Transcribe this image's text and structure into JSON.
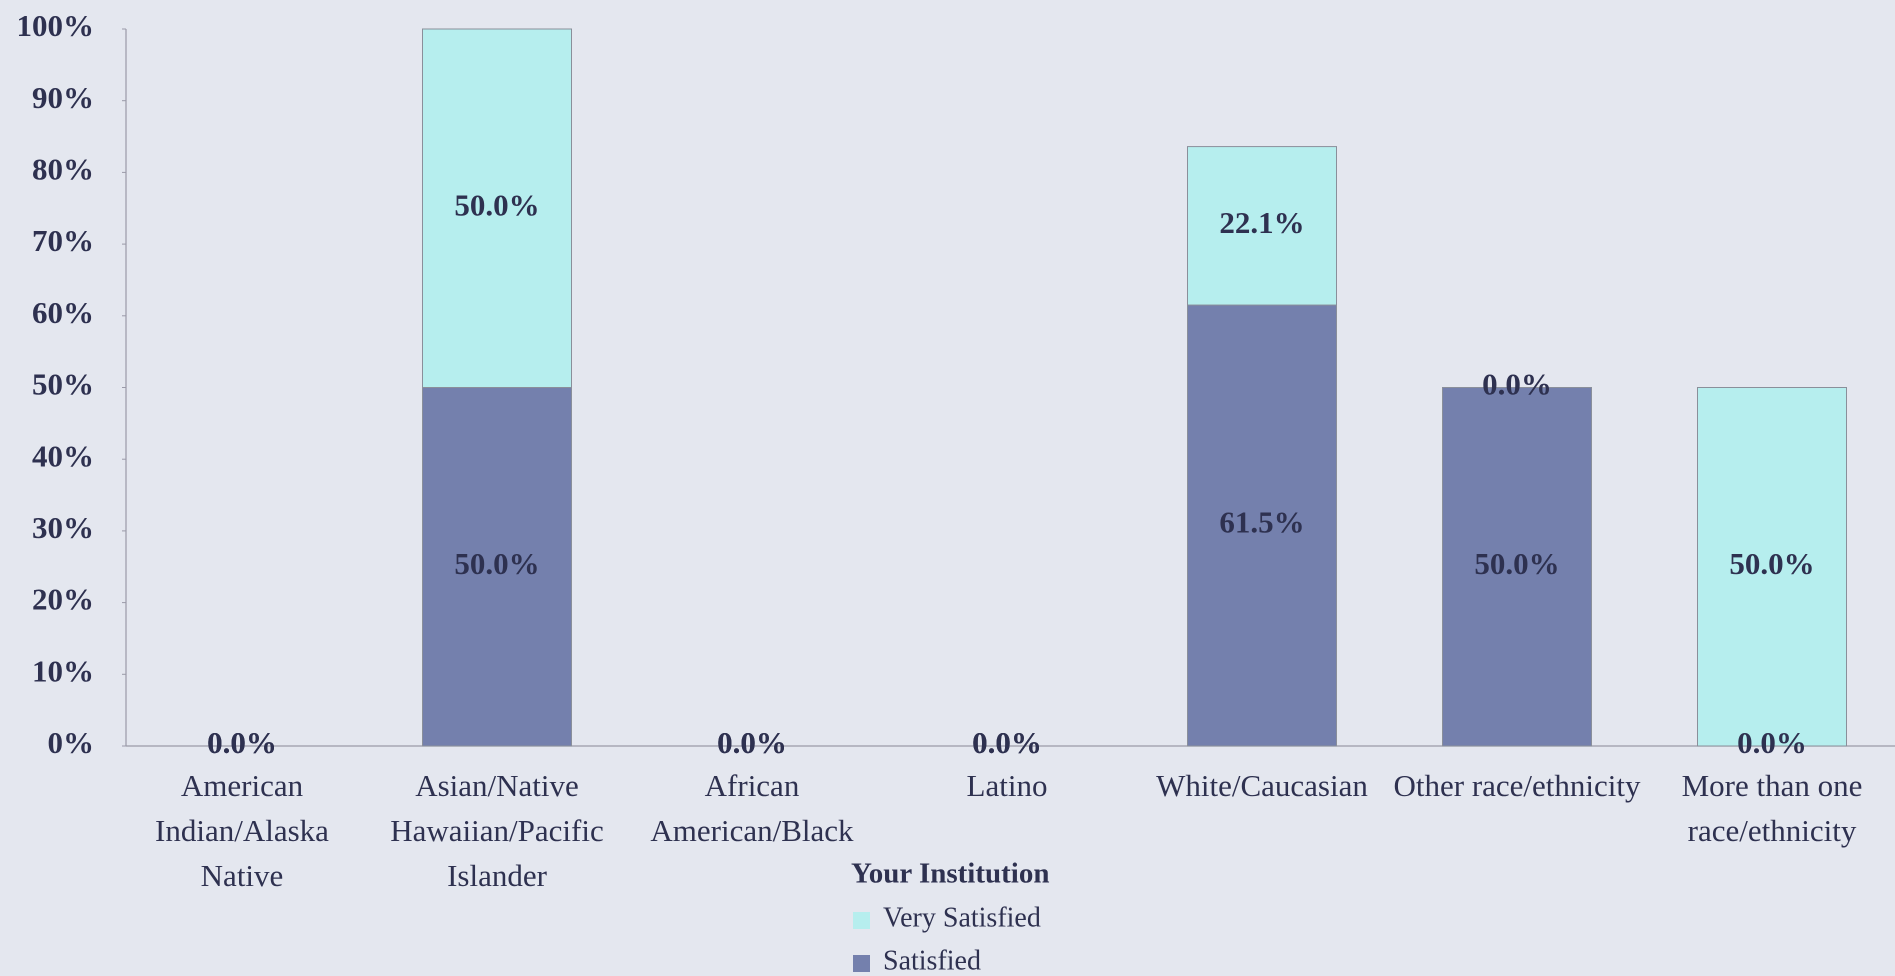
{
  "chart_data": {
    "type": "stacked_bar",
    "categories": [
      "American Indian/Alaska Native",
      "Asian/Native Hawaiian/Pacific Islander",
      "African American/Black",
      "Latino",
      "White/Caucasian",
      "Other race/ethnicity",
      "More than one race/ethnicity"
    ],
    "series": [
      {
        "name": "Satisfied",
        "color": "#7480ad",
        "values": [
          0,
          50,
          0,
          0,
          61.5,
          50,
          0
        ],
        "value_labels": [
          "0.0%",
          "50.0%",
          "0.0%",
          "0.0%",
          "61.5%",
          "50.0%",
          "0.0%"
        ]
      },
      {
        "name": "Very Satisfied",
        "color": "#b6eeee",
        "values": [
          0,
          50,
          0,
          0,
          22.1,
          0,
          50
        ],
        "value_labels": [
          "0.0%",
          "50.0%",
          "0.0%",
          "0.0%",
          "22.1%",
          "0.0%",
          "50.0%"
        ]
      }
    ],
    "legend_title": "Your Institution",
    "ylim": [
      0,
      100
    ],
    "yticks": [
      {
        "value": 0,
        "label": "0%"
      },
      {
        "value": 10,
        "label": "10%"
      },
      {
        "value": 20,
        "label": "20%"
      },
      {
        "value": 30,
        "label": "30%"
      },
      {
        "value": 40,
        "label": "40%"
      },
      {
        "value": 50,
        "label": "50%"
      },
      {
        "value": 60,
        "label": "60%"
      },
      {
        "value": 70,
        "label": "70%"
      },
      {
        "value": 80,
        "label": "80%"
      },
      {
        "value": 90,
        "label": "90%"
      },
      {
        "value": 100,
        "label": "100%"
      }
    ]
  }
}
